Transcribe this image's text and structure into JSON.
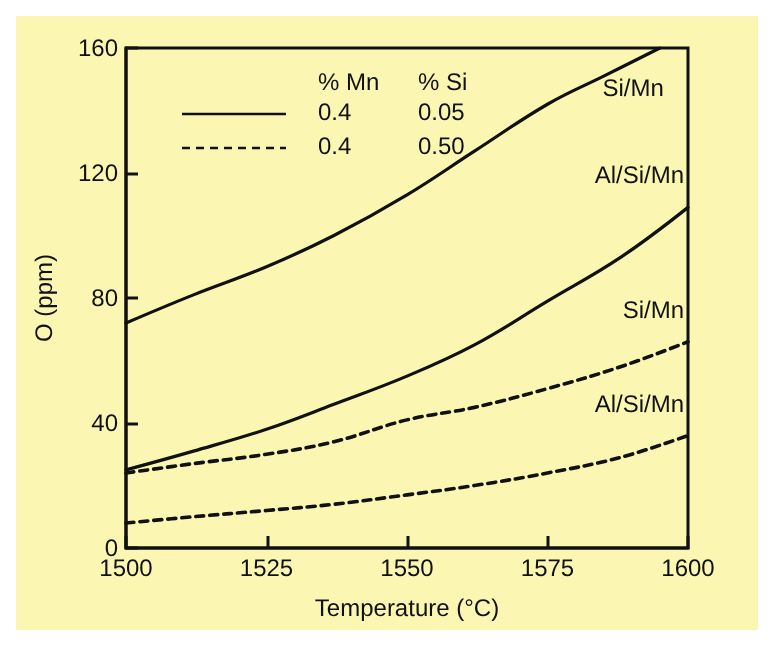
{
  "chart_data": {
    "type": "line",
    "xlabel": "Temperature (°C)",
    "ylabel": "O (ppm)",
    "x": [
      1500,
      1512,
      1525,
      1537,
      1550,
      1562,
      1575,
      1588,
      1600
    ],
    "series": [
      {
        "name": "Si/Mn",
        "color": "#111111",
        "line_style": "solid",
        "x": [
          1500,
          1512,
          1525,
          1537,
          1550,
          1562,
          1575,
          1585,
          1595
        ],
        "values": [
          72,
          81,
          90,
          100,
          113,
          127,
          142,
          151,
          160
        ]
      },
      {
        "name": "Al/Si/Mn",
        "color": "#111111",
        "line_style": "solid",
        "values": [
          25,
          31,
          38,
          46,
          55,
          65,
          79,
          93,
          109
        ]
      },
      {
        "name": "Si/Mn",
        "color": "#111111",
        "line_style": "dashed",
        "values": [
          24,
          27,
          30,
          34,
          41,
          45,
          51,
          58,
          66
        ]
      },
      {
        "name": "Al/Si/Mn",
        "color": "#111111",
        "line_style": "dashed",
        "values": [
          8,
          10,
          12,
          14,
          17,
          20,
          24,
          29,
          36
        ]
      }
    ],
    "annotations": [
      "% Mn",
      "% Si",
      "0.4",
      "0.05",
      "0.4",
      "0.50"
    ],
    "xlim": [
      1500,
      1600
    ],
    "xticks": [
      1500,
      1525,
      1550,
      1575,
      1600
    ],
    "ylim": [
      0,
      160
    ],
    "yticks": [
      0,
      40,
      80,
      120,
      160
    ],
    "grid": false,
    "legend": false
  }
}
